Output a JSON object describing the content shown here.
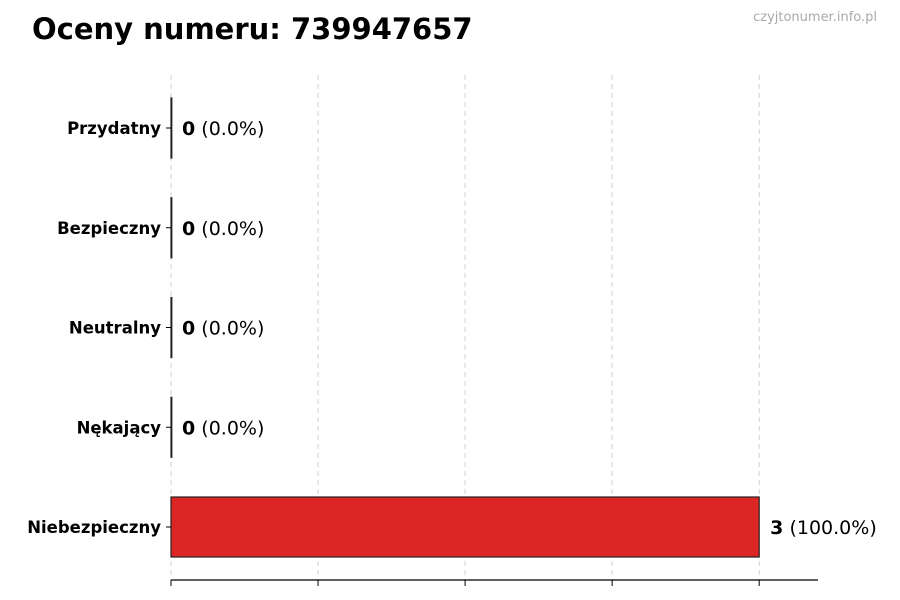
{
  "title": "Oceny numeru: 739947657",
  "watermark": "czyjtonumer.info.pl",
  "chart_data": {
    "type": "bar",
    "orientation": "horizontal",
    "categories": [
      "Przydatny",
      "Bezpieczny",
      "Neutralny",
      "Nękający",
      "Niebezpieczny"
    ],
    "values": [
      0,
      0,
      0,
      0,
      3
    ],
    "percent_labels": [
      "(0.0%)",
      "(0.0%)",
      "(0.0%)",
      "(0.0%)",
      "(100.0%)"
    ],
    "colors": [
      "#2ca02c",
      "#2e7d32",
      "#888888",
      "#e67e22",
      "#dc2626"
    ],
    "xlim": [
      0,
      3.3
    ],
    "x_grid_step": 0.75,
    "x_tick_labels_shown": false,
    "grid": "x-dashed",
    "legend": "none"
  }
}
